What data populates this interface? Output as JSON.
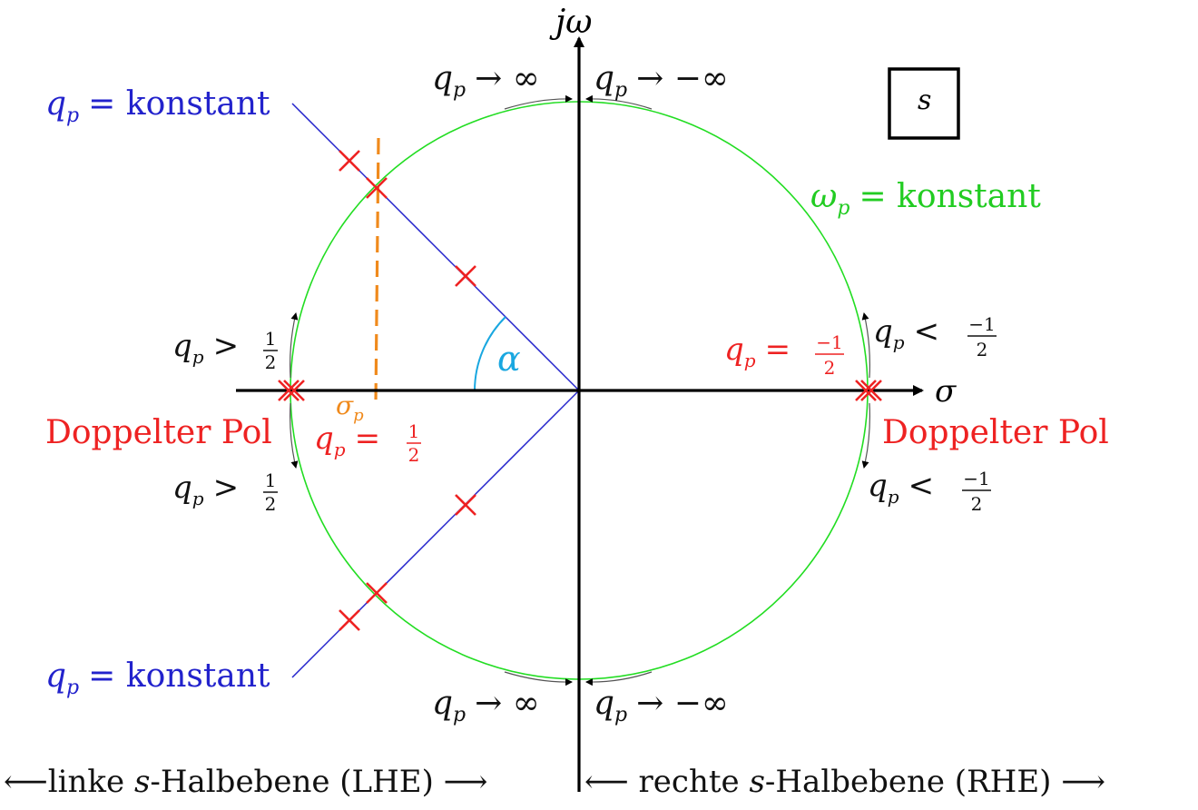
{
  "colors": {
    "axis": "#000000",
    "circle": "#22dd22",
    "line": "#2222cc",
    "pole": "#ee2222",
    "sigma_line": "#f08a1c",
    "angle": "#19a7e0",
    "annotation": "#111111"
  },
  "axes": {
    "y_label": "jω",
    "x_label": "σ"
  },
  "plane_box": {
    "label": "s"
  },
  "circle_label": {
    "var": "ω",
    "sub": "p",
    "text": "= konstant"
  },
  "lines": {
    "upper_label": {
      "var": "q",
      "sub": "p",
      "text": "= konstant"
    },
    "lower_label": {
      "var": "q",
      "sub": "p",
      "text": "= konstant"
    }
  },
  "angle_label": "α",
  "sigma_p": {
    "var": "σ",
    "sub": "p"
  },
  "top_annotations": {
    "left": {
      "var": "q",
      "sub": "p",
      "rel": "→ ∞"
    },
    "right": {
      "var": "q",
      "sub": "p",
      "rel": "→ −∞"
    }
  },
  "bottom_annotations": {
    "left": {
      "var": "q",
      "sub": "p",
      "rel": "→ ∞"
    },
    "right": {
      "var": "q",
      "sub": "p",
      "rel": "→ −∞"
    }
  },
  "left_annotations": {
    "upper": {
      "var": "q",
      "sub": "p",
      "rel": ">",
      "num": "1",
      "den": "2"
    },
    "lower": {
      "var": "q",
      "sub": "p",
      "rel": ">",
      "num": "1",
      "den": "2"
    }
  },
  "right_annotations": {
    "upper": {
      "var": "q",
      "sub": "p",
      "rel": "<",
      "num": "−1",
      "den": "2"
    },
    "lower": {
      "var": "q",
      "sub": "p",
      "rel": "<",
      "num": "−1",
      "den": "2"
    }
  },
  "double_pole": {
    "left": {
      "label": "Doppelter Pol",
      "var": "q",
      "sub": "p",
      "rel": "=",
      "num": "1",
      "den": "2"
    },
    "right": {
      "label": "Doppelter Pol",
      "var": "q",
      "sub": "p",
      "rel": "=",
      "num": "−1",
      "den": "2"
    }
  },
  "bottom_caption": {
    "left_arrow": "⟵",
    "left_pre": "linke ",
    "left_var": "s",
    "left_post": "-Halbebene (LHE) ",
    "left_end_arrow": "⟶",
    "right_arrow": "⟵",
    "right_pre": " rechte ",
    "right_var": "s",
    "right_post": "-Halbebene (RHE) ",
    "right_end_arrow": "⟶"
  }
}
